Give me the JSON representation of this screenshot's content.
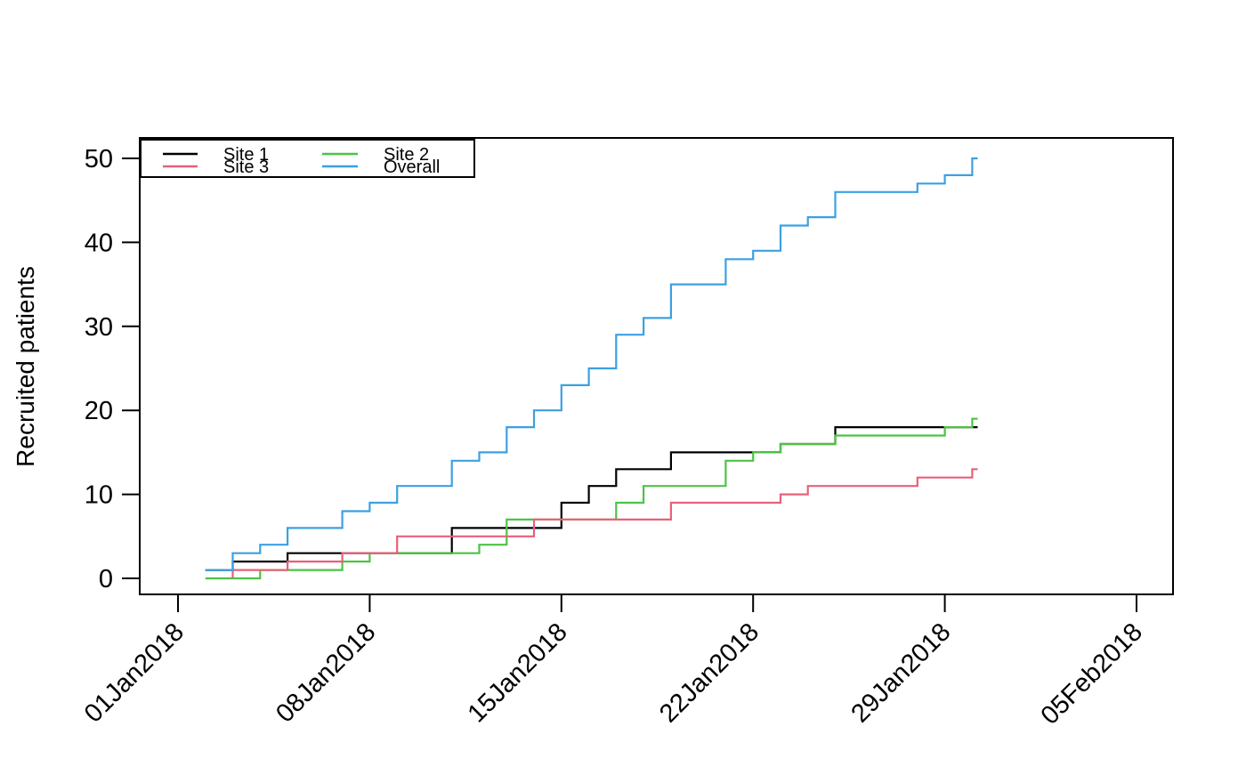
{
  "chart_data": {
    "type": "line",
    "subtype": "step",
    "title": "",
    "xlabel": "",
    "ylabel": "Recruited patients",
    "grid": false,
    "legend_position": "top-left",
    "ylim": [
      0,
      50
    ],
    "xlim_days": [
      0,
      35
    ],
    "x_origin_label": "01Jan2018",
    "x_end_day": 29.2,
    "y_ticks": [
      0,
      10,
      20,
      30,
      40,
      50
    ],
    "x_ticks": [
      {
        "day": 0,
        "label": "01Jan2018"
      },
      {
        "day": 7,
        "label": "08Jan2018"
      },
      {
        "day": 14,
        "label": "15Jan2018"
      },
      {
        "day": 21,
        "label": "22Jan2018"
      },
      {
        "day": 28,
        "label": "29Jan2018"
      },
      {
        "day": 35,
        "label": "05Feb2018"
      }
    ],
    "series": [
      {
        "name": "Site 1",
        "color": "#000000",
        "points_day_value": [
          [
            1,
            1
          ],
          [
            2,
            2
          ],
          [
            4,
            3
          ],
          [
            10,
            6
          ],
          [
            14,
            9
          ],
          [
            15,
            11
          ],
          [
            16,
            13
          ],
          [
            18,
            15
          ],
          [
            22,
            16
          ],
          [
            24,
            18
          ]
        ]
      },
      {
        "name": "Site 2",
        "color": "#4CC344",
        "points_day_value": [
          [
            1,
            0
          ],
          [
            3,
            1
          ],
          [
            6,
            2
          ],
          [
            7,
            3
          ],
          [
            11,
            4
          ],
          [
            12,
            7
          ],
          [
            16,
            9
          ],
          [
            17,
            11
          ],
          [
            20,
            14
          ],
          [
            21,
            15
          ],
          [
            22,
            16
          ],
          [
            24,
            17
          ],
          [
            28,
            18
          ],
          [
            29,
            19
          ]
        ]
      },
      {
        "name": "Site 3",
        "color": "#E6617A",
        "points_day_value": [
          [
            2,
            0
          ],
          [
            2,
            1
          ],
          [
            4,
            2
          ],
          [
            6,
            3
          ],
          [
            8,
            5
          ],
          [
            13,
            7
          ],
          [
            18,
            9
          ],
          [
            22,
            10
          ],
          [
            23,
            11
          ],
          [
            27,
            12
          ],
          [
            29,
            13
          ]
        ]
      },
      {
        "name": "Overall",
        "color": "#3BA0E2",
        "points_day_value": [
          [
            1,
            1
          ],
          [
            2,
            3
          ],
          [
            3,
            4
          ],
          [
            4,
            6
          ],
          [
            6,
            8
          ],
          [
            7,
            9
          ],
          [
            8,
            11
          ],
          [
            10,
            14
          ],
          [
            11,
            15
          ],
          [
            12,
            18
          ],
          [
            13,
            20
          ],
          [
            14,
            23
          ],
          [
            15,
            25
          ],
          [
            16,
            29
          ],
          [
            17,
            31
          ],
          [
            18,
            35
          ],
          [
            20,
            38
          ],
          [
            21,
            39
          ],
          [
            22,
            42
          ],
          [
            23,
            43
          ],
          [
            24,
            46
          ],
          [
            27,
            47
          ],
          [
            28,
            48
          ],
          [
            29,
            50
          ]
        ]
      }
    ],
    "legend_columns": [
      [
        "Site 1",
        "Site 3"
      ],
      [
        "Site 2",
        "Overall"
      ]
    ]
  }
}
